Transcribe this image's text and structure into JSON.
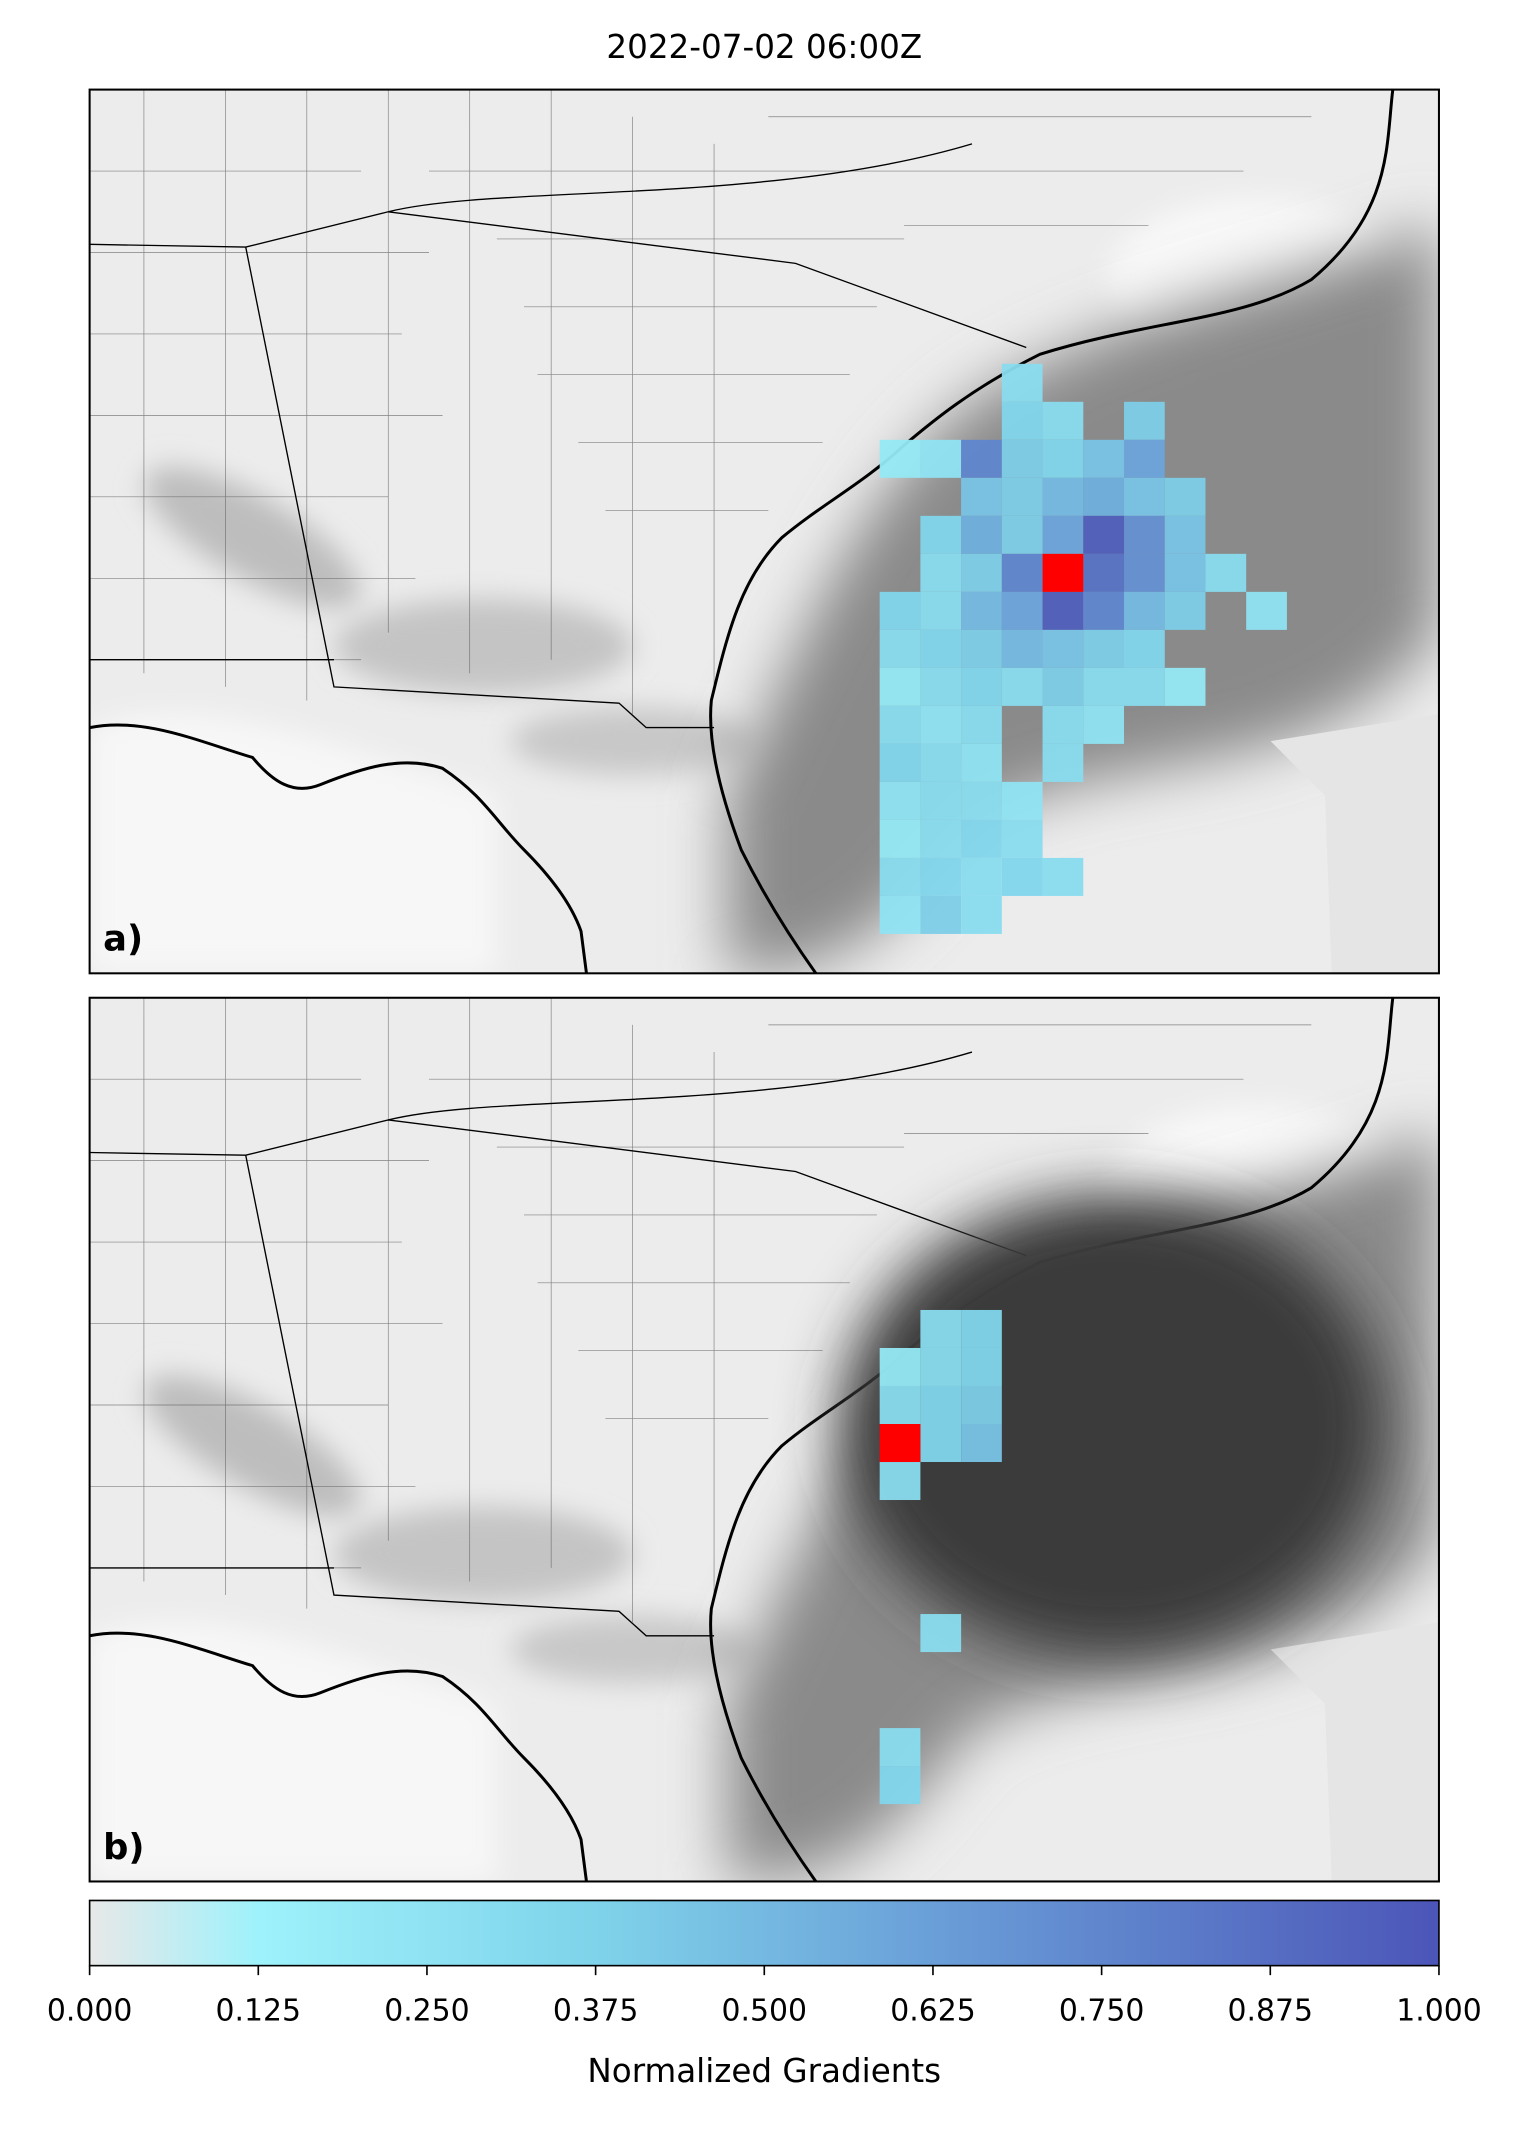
{
  "chart_data": {
    "type": "heatmap",
    "title": "2022-07-02 06:00Z",
    "panels": [
      {
        "label": "a)",
        "highlight": {
          "row": 12,
          "col": 24
        },
        "rows": [
          {
            "row": 7,
            "start": 23,
            "values": [
              0.3
            ]
          },
          {
            "row": 8,
            "start": 23,
            "values": [
              0.35,
              0.3,
              null,
              0.4
            ]
          },
          {
            "row": 9,
            "start": 20,
            "values": [
              0.2,
              0.25,
              0.75,
              0.4,
              0.35,
              0.45,
              0.6
            ]
          },
          {
            "row": 10,
            "start": 22,
            "values": [
              0.45,
              0.4,
              0.5,
              0.55,
              0.45,
              0.4
            ]
          },
          {
            "row": 11,
            "start": 21,
            "values": [
              0.35,
              0.55,
              0.4,
              0.6,
              0.95,
              0.7,
              0.45
            ]
          },
          {
            "row": 12,
            "start": 21,
            "values": [
              0.3,
              0.4,
              0.75,
              null,
              0.85,
              0.7,
              0.45,
              0.3
            ]
          },
          {
            "row": 13,
            "start": 20,
            "values": [
              0.35,
              0.3,
              0.5,
              0.6,
              0.95,
              0.75,
              0.5,
              0.4,
              null,
              0.25
            ]
          },
          {
            "row": 14,
            "start": 20,
            "values": [
              0.3,
              0.35,
              0.4,
              0.5,
              0.45,
              0.4,
              0.35
            ]
          },
          {
            "row": 15,
            "start": 20,
            "values": [
              0.2,
              0.3,
              0.35,
              0.3,
              0.4,
              0.3,
              0.3,
              0.2
            ]
          },
          {
            "row": 16,
            "start": 20,
            "values": [
              0.3,
              0.25,
              0.3,
              null,
              0.3,
              0.25
            ]
          },
          {
            "row": 17,
            "start": 20,
            "values": [
              0.35,
              0.3,
              0.25,
              null,
              0.3
            ]
          },
          {
            "row": 18,
            "start": 20,
            "values": [
              0.25,
              0.3,
              0.3,
              0.25
            ]
          },
          {
            "row": 19,
            "start": 20,
            "values": [
              0.2,
              0.3,
              0.35,
              0.3
            ]
          },
          {
            "row": 20,
            "start": 20,
            "values": [
              0.3,
              0.35,
              0.3,
              0.35,
              0.3
            ]
          },
          {
            "row": 21,
            "start": 20,
            "values": [
              0.25,
              0.4,
              0.3
            ]
          }
        ]
      },
      {
        "label": "b)",
        "highlight": {
          "row": 11,
          "col": 20
        },
        "rows": [
          {
            "row": 8,
            "start": 21,
            "values": [
              0.3,
              0.35
            ]
          },
          {
            "row": 9,
            "start": 20,
            "values": [
              0.2,
              0.3,
              0.35
            ]
          },
          {
            "row": 10,
            "start": 20,
            "values": [
              0.3,
              0.35,
              0.4
            ]
          },
          {
            "row": 11,
            "start": 21,
            "values": [
              0.35,
              0.45
            ]
          },
          {
            "row": 12,
            "start": 20,
            "values": [
              0.3
            ]
          },
          {
            "row": 16,
            "start": 21,
            "values": [
              0.3
            ]
          },
          {
            "row": 19,
            "start": 20,
            "values": [
              0.3
            ]
          },
          {
            "row": 20,
            "start": 20,
            "values": [
              0.35
            ]
          }
        ]
      }
    ],
    "highlight_color": "#ff0000",
    "colormap": [
      {
        "value": 0,
        "color": "#e8e8e8"
      },
      {
        "value": 0.125,
        "color": "#9ef2fb"
      },
      {
        "value": 0.375,
        "color": "#7fd3ea"
      },
      {
        "value": 0.625,
        "color": "#6a9fd8"
      },
      {
        "value": 1,
        "color": "#4c55b8"
      }
    ],
    "colorbar": {
      "label": "Normalized Gradients",
      "lim": [
        0,
        1
      ],
      "ticks": [
        {
          "value": 0,
          "label": "0.000"
        },
        {
          "value": 0.125,
          "label": "0.125"
        },
        {
          "value": 0.25,
          "label": "0.250"
        },
        {
          "value": 0.375,
          "label": "0.375"
        },
        {
          "value": 0.5,
          "label": "0.500"
        },
        {
          "value": 0.625,
          "label": "0.625"
        },
        {
          "value": 0.75,
          "label": "0.750"
        },
        {
          "value": 0.875,
          "label": "0.875"
        },
        {
          "value": 1,
          "label": "1.000"
        }
      ]
    }
  }
}
